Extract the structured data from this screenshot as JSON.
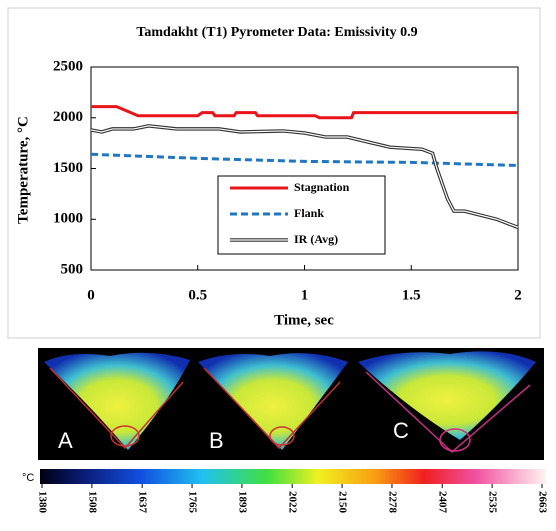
{
  "chart_data": {
    "type": "line",
    "title": "Tamdakht (T1) Pyrometer Data: Emissivity 0.9",
    "x_label": "Time, sec",
    "y_label": "Temperature, °C",
    "xlim": [
      0,
      2
    ],
    "xticks": [
      0,
      0.5,
      1,
      1.5,
      2
    ],
    "ylim": [
      500,
      2500
    ],
    "yticks": [
      500,
      1000,
      1500,
      2000,
      2500
    ],
    "grid": false,
    "legend": "center",
    "series": [
      {
        "name": "Stagnation",
        "color": "#e8141a",
        "line_style": "solid",
        "x": [
          0,
          0.12,
          0.22,
          0.5,
          0.52,
          0.57,
          0.58,
          0.67,
          0.68,
          0.77,
          0.78,
          1.05,
          1.07,
          1.22,
          1.23,
          2
        ],
        "values": [
          2110,
          2110,
          2020,
          2020,
          2050,
          2050,
          2020,
          2020,
          2050,
          2050,
          2020,
          2020,
          2000,
          2000,
          2050,
          2050
        ]
      },
      {
        "name": "Flank",
        "color": "#1f77c4",
        "line_style": "dashed",
        "x": [
          0,
          0.5,
          1,
          1.5,
          2
        ],
        "values": [
          1640,
          1600,
          1570,
          1560,
          1530
        ]
      },
      {
        "name": "IR (Avg)",
        "color": "#333333",
        "line_style": "double",
        "x": [
          0,
          0.05,
          0.1,
          0.2,
          0.27,
          0.4,
          0.6,
          0.7,
          0.9,
          1.0,
          1.1,
          1.2,
          1.3,
          1.4,
          1.55,
          1.6,
          1.62,
          1.67,
          1.7,
          1.75,
          1.9,
          2
        ],
        "values": [
          1880,
          1860,
          1890,
          1890,
          1920,
          1890,
          1890,
          1860,
          1870,
          1850,
          1810,
          1810,
          1760,
          1710,
          1690,
          1650,
          1500,
          1200,
          1080,
          1080,
          1000,
          920
        ]
      }
    ]
  },
  "images": {
    "labels": [
      "A",
      "B",
      "C"
    ]
  },
  "colorbar": {
    "unit": "°C",
    "ticks": [
      1380,
      1508,
      1637,
      1765,
      1893,
      2022,
      2150,
      2278,
      2407,
      2535,
      2663
    ]
  }
}
